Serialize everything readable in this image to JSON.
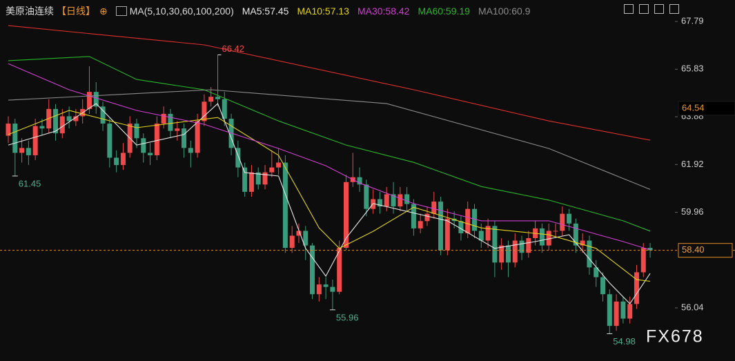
{
  "chart_data": {
    "type": "candlestick",
    "title": "美原油连续",
    "period": "【日线】",
    "indicator": "MA(5,10,30,60,100,200)",
    "up_color": "#f04a4a",
    "down_color": "#3a9c7c",
    "open": [
      63.1,
      63.6,
      62.4,
      62.6,
      62.3,
      63.5,
      63.4,
      64.2,
      63.2,
      63.9,
      63.7,
      63.9,
      64.2,
      64.9,
      64.3,
      63.6,
      62.2,
      61.9,
      62.4,
      63.6,
      63.0,
      62.4,
      62.3,
      63.6,
      64.0,
      63.3,
      63.4,
      62.6,
      62.4,
      63.7,
      64.5,
      64.7,
      64.6,
      63.8,
      62.6,
      61.8,
      60.8,
      61.6,
      61.1,
      61.6,
      61.8,
      62.0,
      58.5,
      59.0,
      59.2,
      58.6,
      56.6,
      57.0,
      56.9,
      56.7,
      58.5,
      61.2,
      61.4,
      61.1,
      60.1,
      60.5,
      60.2,
      60.7,
      60.2,
      60.7,
      60.3,
      59.3,
      59.6,
      59.9,
      60.4,
      58.4,
      59.7,
      59.6,
      59.1,
      60.1,
      59.2,
      58.8,
      59.4,
      57.9,
      58.6,
      57.9,
      58.8,
      58.3,
      58.9,
      59.3,
      58.6,
      59.2,
      59.2,
      59.9,
      59.5,
      58.6,
      58.8,
      57.7,
      57.3,
      56.6,
      55.3,
      56.3,
      55.6,
      56.2,
      57.5,
      58.5
    ],
    "high": [
      63.9,
      63.8,
      63.0,
      62.9,
      63.8,
      63.8,
      64.6,
      64.4,
      64.2,
      64.3,
      64.2,
      64.6,
      65.95,
      65.3,
      64.5,
      63.8,
      62.5,
      62.8,
      63.9,
      63.8,
      63.2,
      62.8,
      63.9,
      64.3,
      64.2,
      63.7,
      63.6,
      62.9,
      64.0,
      64.8,
      65.1,
      66.42,
      64.9,
      64.0,
      62.9,
      62.0,
      61.9,
      61.8,
      61.9,
      62.5,
      62.6,
      62.3,
      59.4,
      59.5,
      59.4,
      58.7,
      57.3,
      57.3,
      57.2,
      58.8,
      61.5,
      62.4,
      61.8,
      61.3,
      60.9,
      60.8,
      61.0,
      61.2,
      61.0,
      61.0,
      60.5,
      59.9,
      60.2,
      60.8,
      60.6,
      60.1,
      60.0,
      59.8,
      60.4,
      60.3,
      59.5,
      59.7,
      59.6,
      58.9,
      58.8,
      59.1,
      59.0,
      59.2,
      59.6,
      59.5,
      59.5,
      59.5,
      60.2,
      60.1,
      59.7,
      59.1,
      59.0,
      58.0,
      57.5,
      56.8,
      56.6,
      56.5,
      56.5,
      57.8,
      58.7,
      58.7
    ],
    "low": [
      62.8,
      61.45,
      62.0,
      61.9,
      62.1,
      63.1,
      63.2,
      62.9,
      63.0,
      63.4,
      63.5,
      63.6,
      64.0,
      64.0,
      63.3,
      61.8,
      61.6,
      61.7,
      62.2,
      62.6,
      62.0,
      61.9,
      62.1,
      63.4,
      63.0,
      62.9,
      62.2,
      61.8,
      62.2,
      63.5,
      64.3,
      64.3,
      63.5,
      62.3,
      61.4,
      60.6,
      60.6,
      60.9,
      60.9,
      61.4,
      61.5,
      58.3,
      58.3,
      58.7,
      58.0,
      56.4,
      56.3,
      56.4,
      55.96,
      56.6,
      58.4,
      61.0,
      60.8,
      59.8,
      59.9,
      59.9,
      60.0,
      59.9,
      60.0,
      60.0,
      59.0,
      59.1,
      59.4,
      59.7,
      58.2,
      58.2,
      59.3,
      58.8,
      58.9,
      58.9,
      58.5,
      58.5,
      57.3,
      57.6,
      57.3,
      57.7,
      58.0,
      58.1,
      58.6,
      58.3,
      58.4,
      58.9,
      59.0,
      59.2,
      58.3,
      58.3,
      57.4,
      56.9,
      56.3,
      54.98,
      55.1,
      55.4,
      55.4,
      56.0,
      57.3,
      58.1
    ],
    "close": [
      63.6,
      62.4,
      62.6,
      62.3,
      63.5,
      63.4,
      64.2,
      63.2,
      63.9,
      63.7,
      63.9,
      64.2,
      64.9,
      64.3,
      63.6,
      62.2,
      61.9,
      62.4,
      63.6,
      63.0,
      62.4,
      62.3,
      63.6,
      64.0,
      63.3,
      63.4,
      62.6,
      62.4,
      63.7,
      64.5,
      64.7,
      64.6,
      63.8,
      62.6,
      61.8,
      60.8,
      61.6,
      61.1,
      61.6,
      61.8,
      62.0,
      58.5,
      59.0,
      59.2,
      58.6,
      56.6,
      57.0,
      56.9,
      56.7,
      58.5,
      61.2,
      61.4,
      61.1,
      60.1,
      60.5,
      60.2,
      60.7,
      60.2,
      60.7,
      60.3,
      59.3,
      59.6,
      59.9,
      60.4,
      58.4,
      59.7,
      59.6,
      59.1,
      60.1,
      59.2,
      58.8,
      59.4,
      57.9,
      58.6,
      57.9,
      58.8,
      58.3,
      58.9,
      59.3,
      58.6,
      59.2,
      59.2,
      59.9,
      59.5,
      58.6,
      58.8,
      57.7,
      57.3,
      56.6,
      55.3,
      56.3,
      55.6,
      56.2,
      57.5,
      58.5,
      58.4
    ],
    "overlays": [
      {
        "name": "MA5:57.45",
        "color": "#e8e8e8",
        "x": [
          0,
          7,
          13,
          19,
          26,
          31,
          35,
          40,
          44,
          47,
          50,
          54,
          65,
          72,
          78,
          83,
          89,
          92,
          95
        ],
        "values": [
          62.72,
          63.29,
          64.42,
          62.72,
          63.15,
          64.42,
          61.59,
          61.45,
          58.48,
          57.34,
          58.9,
          60.32,
          59.61,
          58.48,
          58.76,
          59.04,
          57.06,
          56.21,
          57.45
        ]
      },
      {
        "name": "MA10:57.13",
        "color": "#e3d417",
        "x": [
          0,
          9,
          19,
          31,
          40,
          46,
          49,
          54,
          60,
          70,
          80,
          87,
          93,
          95
        ],
        "values": [
          63.15,
          64.14,
          63.43,
          63.85,
          62.3,
          59.32,
          58.48,
          59.18,
          60.17,
          59.32,
          59.04,
          58.48,
          57.2,
          57.13
        ]
      },
      {
        "name": "MA30:58.42",
        "color": "#d23fd2",
        "x": [
          0,
          9,
          19,
          29,
          40,
          47,
          52,
          60,
          70,
          80,
          91,
          95
        ],
        "values": [
          66.06,
          64.99,
          64.14,
          63.57,
          62.58,
          61.87,
          61.16,
          60.32,
          59.61,
          59.61,
          58.76,
          58.42
        ]
      },
      {
        "name": "MA60:59.19",
        "color": "#28b828",
        "x": [
          0,
          12,
          19,
          29,
          40,
          50,
          60,
          70,
          80,
          91,
          95
        ],
        "values": [
          66.18,
          66.35,
          65.41,
          64.99,
          63.71,
          62.72,
          62.01,
          61.02,
          60.46,
          59.61,
          59.19
        ]
      },
      {
        "name": "MA100:60.9",
        "color": "#8c8c8c",
        "x": [
          0,
          30,
          56,
          80,
          95
        ],
        "values": [
          64.56,
          64.99,
          64.42,
          62.58,
          60.9
        ]
      },
      {
        "color": "#e0302c",
        "x": [
          0,
          29,
          60,
          80,
          95
        ],
        "values": [
          67.62,
          66.83,
          64.99,
          63.71,
          62.92
        ]
      }
    ],
    "ylim": [
      53.86,
      68.67
    ],
    "yticks": [
      67.79,
      65.83,
      63.88,
      61.92,
      59.96,
      56.04
    ],
    "last_price": {
      "value": 58.4,
      "label": "58.40"
    },
    "marked_price": {
      "value": 64.54,
      "label": "64.54"
    },
    "watermark": "FX678"
  }
}
